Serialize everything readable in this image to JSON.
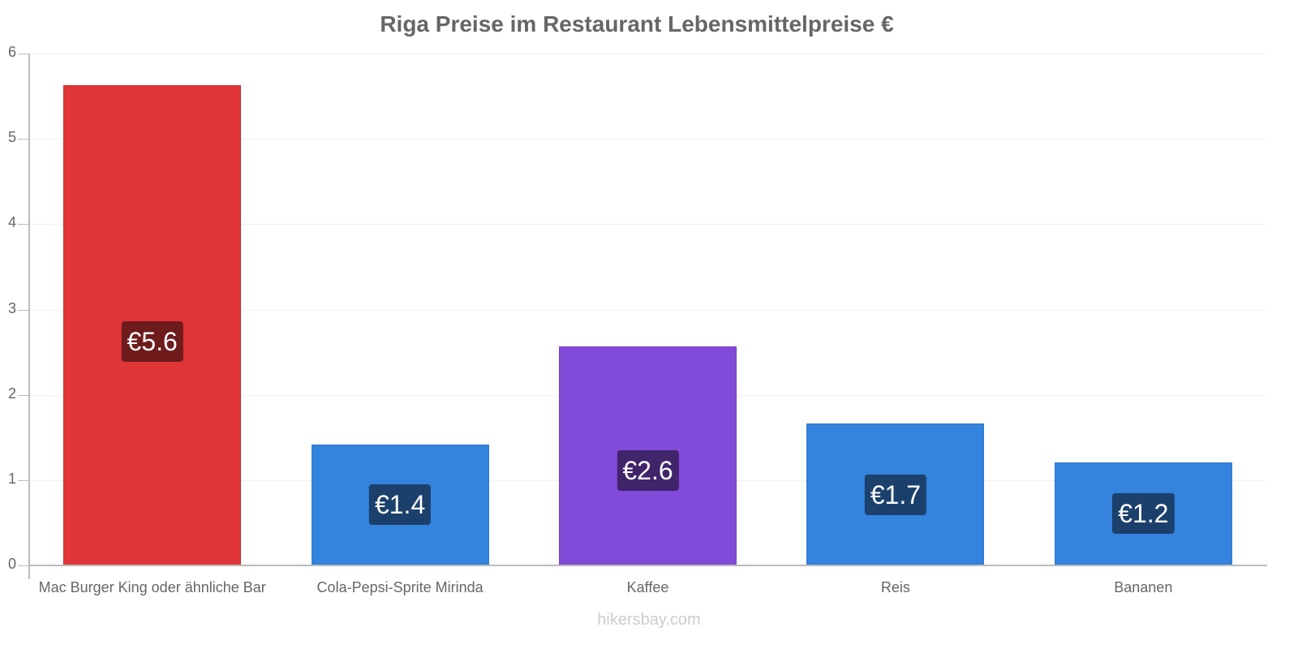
{
  "chart_data": {
    "type": "bar",
    "title": "Riga Preise im Restaurant Lebensmittelpreise €",
    "xlabel": "",
    "ylabel": "",
    "ylim": [
      0,
      6
    ],
    "yticks": [
      "0",
      "1",
      "2",
      "3",
      "4",
      "5",
      "6"
    ],
    "grid": true,
    "legend": null,
    "categories": [
      "Mac Burger King oder ähnliche Bar",
      "Cola-Pepsi-Sprite Mirinda",
      "Kaffee",
      "Reis",
      "Bananen"
    ],
    "values": [
      5.63,
      1.42,
      2.57,
      1.66,
      1.21
    ],
    "data_labels": [
      "€5.6",
      "€1.4",
      "€2.6",
      "€1.7",
      "€1.2"
    ],
    "colors": [
      "#e03537",
      "#3483dd",
      "#814ad8",
      "#3483dd",
      "#3483dd"
    ],
    "label_box_colors": [
      "#6e1b1c",
      "#1c406c",
      "#40256a",
      "#1c406c",
      "#1c406c"
    ]
  },
  "footer": {
    "watermark": "hikersbay.com"
  }
}
